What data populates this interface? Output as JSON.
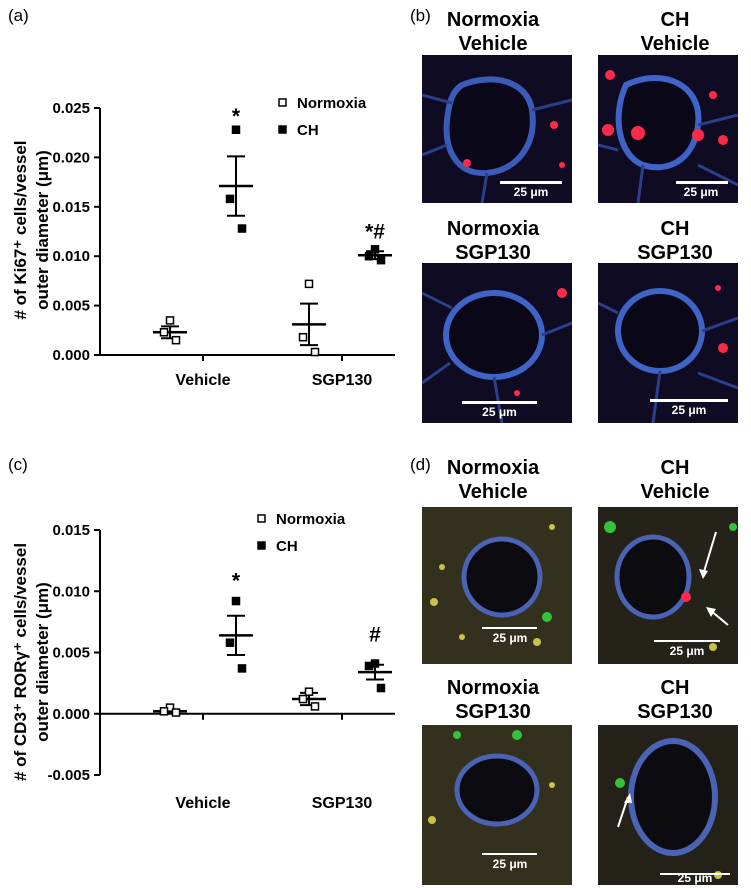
{
  "panels": {
    "a": "(a)",
    "b": "(b)",
    "c": "(c)",
    "d": "(d)"
  },
  "chart_data": [
    {
      "id": "a",
      "type": "scatter",
      "ylabel_line1": "# of Ki67⁺ cells/vessel",
      "ylabel_line2": "outer diameter  (μm)",
      "categories": [
        "Vehicle",
        "SGP130"
      ],
      "ylim": [
        0,
        0.025
      ],
      "yticks": [
        "0.000",
        "0.005",
        "0.010",
        "0.015",
        "0.020",
        "0.025"
      ],
      "ytick_values": [
        0,
        0.005,
        0.01,
        0.015,
        0.02,
        0.025
      ],
      "legend": [
        "Normoxia",
        "CH"
      ],
      "series": [
        {
          "name": "Normoxia",
          "category": "Vehicle",
          "points": [
            0.0035,
            0.0023,
            0.0015
          ],
          "mean": 0.0023,
          "sem": 0.0006
        },
        {
          "name": "CH",
          "category": "Vehicle",
          "points": [
            0.0228,
            0.0158,
            0.0128
          ],
          "mean": 0.0171,
          "sem": 0.003
        },
        {
          "name": "Normoxia",
          "category": "SGP130",
          "points": [
            0.0072,
            0.0018,
            0.0003
          ],
          "mean": 0.0031,
          "sem": 0.0021
        },
        {
          "name": "CH",
          "category": "SGP130",
          "points": [
            0.0107,
            0.01,
            0.0096
          ],
          "mean": 0.0101,
          "sem": 0.0004
        }
      ],
      "annotations": [
        {
          "text": "*",
          "category": "Vehicle",
          "series": "CH",
          "y": 0.0235
        },
        {
          "text": "*#",
          "category": "SGP130",
          "series": "CH",
          "y": 0.0118
        }
      ]
    },
    {
      "id": "c",
      "type": "scatter",
      "ylabel_line1": "# of CD3⁺ RORγ⁺ cells/vessel",
      "ylabel_line2": "outer diameter  (μm)",
      "categories": [
        "Vehicle",
        "SGP130"
      ],
      "ylim": [
        -0.005,
        0.015
      ],
      "yticks": [
        "-0.005",
        "0.000",
        "0.005",
        "0.010",
        "0.015"
      ],
      "ytick_values": [
        -0.005,
        0,
        0.005,
        0.01,
        0.015
      ],
      "legend": [
        "Normoxia",
        "CH"
      ],
      "series": [
        {
          "name": "Normoxia",
          "category": "Vehicle",
          "points": [
            0.0005,
            0.0002,
            0.0001
          ],
          "mean": 0.0002,
          "sem": 0.0001
        },
        {
          "name": "CH",
          "category": "Vehicle",
          "points": [
            0.0092,
            0.0058,
            0.0037
          ],
          "mean": 0.0064,
          "sem": 0.0016
        },
        {
          "name": "Normoxia",
          "category": "SGP130",
          "points": [
            0.0018,
            0.0012,
            0.0006
          ],
          "mean": 0.0012,
          "sem": 0.0005
        },
        {
          "name": "CH",
          "category": "SGP130",
          "points": [
            0.0041,
            0.0039,
            0.0021
          ],
          "mean": 0.0034,
          "sem": 0.0006
        }
      ],
      "annotations": [
        {
          "text": "*",
          "category": "Vehicle",
          "series": "CH",
          "y": 0.0103
        },
        {
          "text": "#",
          "category": "SGP130",
          "series": "CH",
          "y": 0.0059
        }
      ]
    }
  ],
  "micrographs": {
    "b": [
      {
        "line1": "Normoxia",
        "line2": "Vehicle",
        "scale": "25 μm"
      },
      {
        "line1": "CH",
        "line2": "Vehicle",
        "scale": "25 μm"
      },
      {
        "line1": "Normoxia",
        "line2": "SGP130",
        "scale": "25 μm"
      },
      {
        "line1": "CH",
        "line2": "SGP130",
        "scale": "25 μm"
      }
    ],
    "d": [
      {
        "line1": "Normoxia",
        "line2": "Vehicle",
        "scale": "25 μm"
      },
      {
        "line1": "CH",
        "line2": "Vehicle",
        "scale": "25 μm"
      },
      {
        "line1": "Normoxia",
        "line2": "SGP130",
        "scale": "25 μm"
      },
      {
        "line1": "CH",
        "line2": "SGP130",
        "scale": "25 μm"
      }
    ]
  },
  "colors": {
    "stain_blue": "#3f64c8",
    "stain_red": "#ff2a4a",
    "stain_green": "#35c23a",
    "stain_yellow": "#c9c24a",
    "background_dark": "#0d0a1c"
  }
}
